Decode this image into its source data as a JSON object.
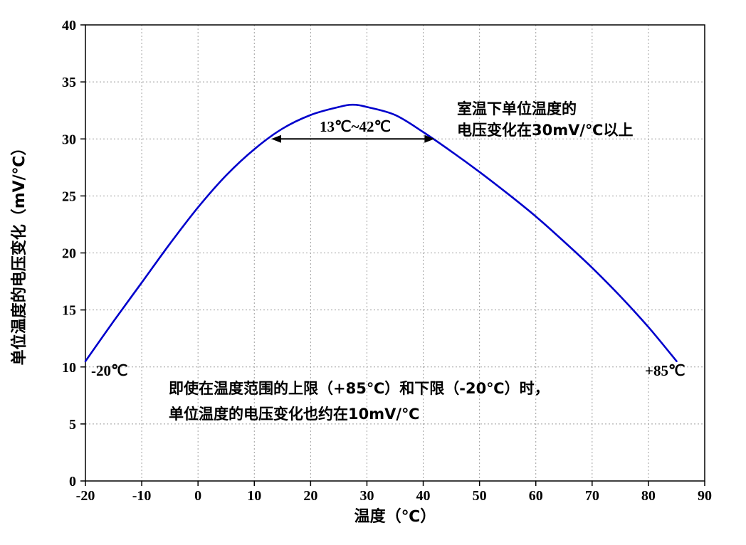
{
  "chart_data": {
    "type": "line",
    "xlabel": "温度（℃）",
    "ylabel": "单位温度的电压变化（mV/℃）",
    "xlim": [
      -20,
      90
    ],
    "ylim": [
      0,
      40
    ],
    "x_ticks": [
      -20,
      -10,
      0,
      10,
      20,
      30,
      40,
      50,
      60,
      70,
      80,
      90
    ],
    "y_ticks": [
      0,
      5,
      10,
      15,
      20,
      25,
      30,
      35,
      40
    ],
    "grid": "dashed-both-axes",
    "legend": "none",
    "series": [
      {
        "color": "#0000cc",
        "x": [
          -20,
          -15,
          -10,
          -5,
          0,
          5,
          10,
          15,
          20,
          25,
          27.5,
          30,
          35,
          40,
          45,
          50,
          55,
          60,
          65,
          70,
          75,
          80,
          85
        ],
        "y": [
          10.5,
          14.0,
          17.4,
          20.8,
          24.0,
          26.8,
          29.1,
          30.9,
          32.1,
          32.8,
          33.0,
          32.8,
          32.1,
          30.6,
          28.9,
          27.1,
          25.2,
          23.2,
          21.0,
          18.7,
          16.2,
          13.5,
          10.5
        ]
      }
    ],
    "annotations": {
      "range_arrow": {
        "label": "13℃~42℃",
        "x_start": 13,
        "x_end": 42,
        "y": 30
      },
      "room_temp_note": [
        "室温下单位温度的",
        "电压变化在30mV/℃以上"
      ],
      "left_end_label": "-20℃",
      "right_end_label": "+85℃",
      "bottom_note": [
        "即使在温度范围的上限（+85℃）和下限（-20℃）时，",
        "单位温度的电压变化也约在10mV/℃"
      ]
    }
  }
}
